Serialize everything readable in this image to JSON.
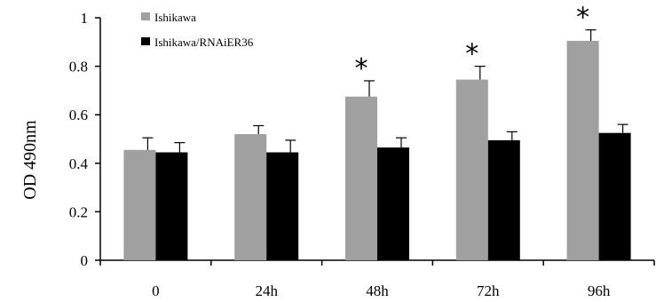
{
  "chart_data": {
    "type": "bar",
    "title": "",
    "ylabel": "OD 490nm",
    "xlabel": "",
    "ylim": [
      0,
      1
    ],
    "yticks": [
      "0",
      "0.2",
      "0.4",
      "0.6",
      "0.8",
      "1"
    ],
    "categories": [
      "0",
      "24h",
      "48h",
      "72h",
      "96h"
    ],
    "series": [
      {
        "name": "Ishikawa",
        "color": "#a0a0a0",
        "values": [
          0.455,
          0.52,
          0.675,
          0.745,
          0.905
        ],
        "errors": [
          0.05,
          0.035,
          0.065,
          0.055,
          0.045
        ]
      },
      {
        "name": "Ishikawa/RNAiER36",
        "color": "#000000",
        "values": [
          0.445,
          0.445,
          0.465,
          0.495,
          0.525
        ],
        "errors": [
          0.04,
          0.05,
          0.04,
          0.035,
          0.035
        ]
      }
    ],
    "significance": {
      "marker": "*",
      "series": "Ishikawa",
      "categories": [
        "48h",
        "72h",
        "96h"
      ]
    },
    "legend_position": "top-left",
    "grid": false
  }
}
